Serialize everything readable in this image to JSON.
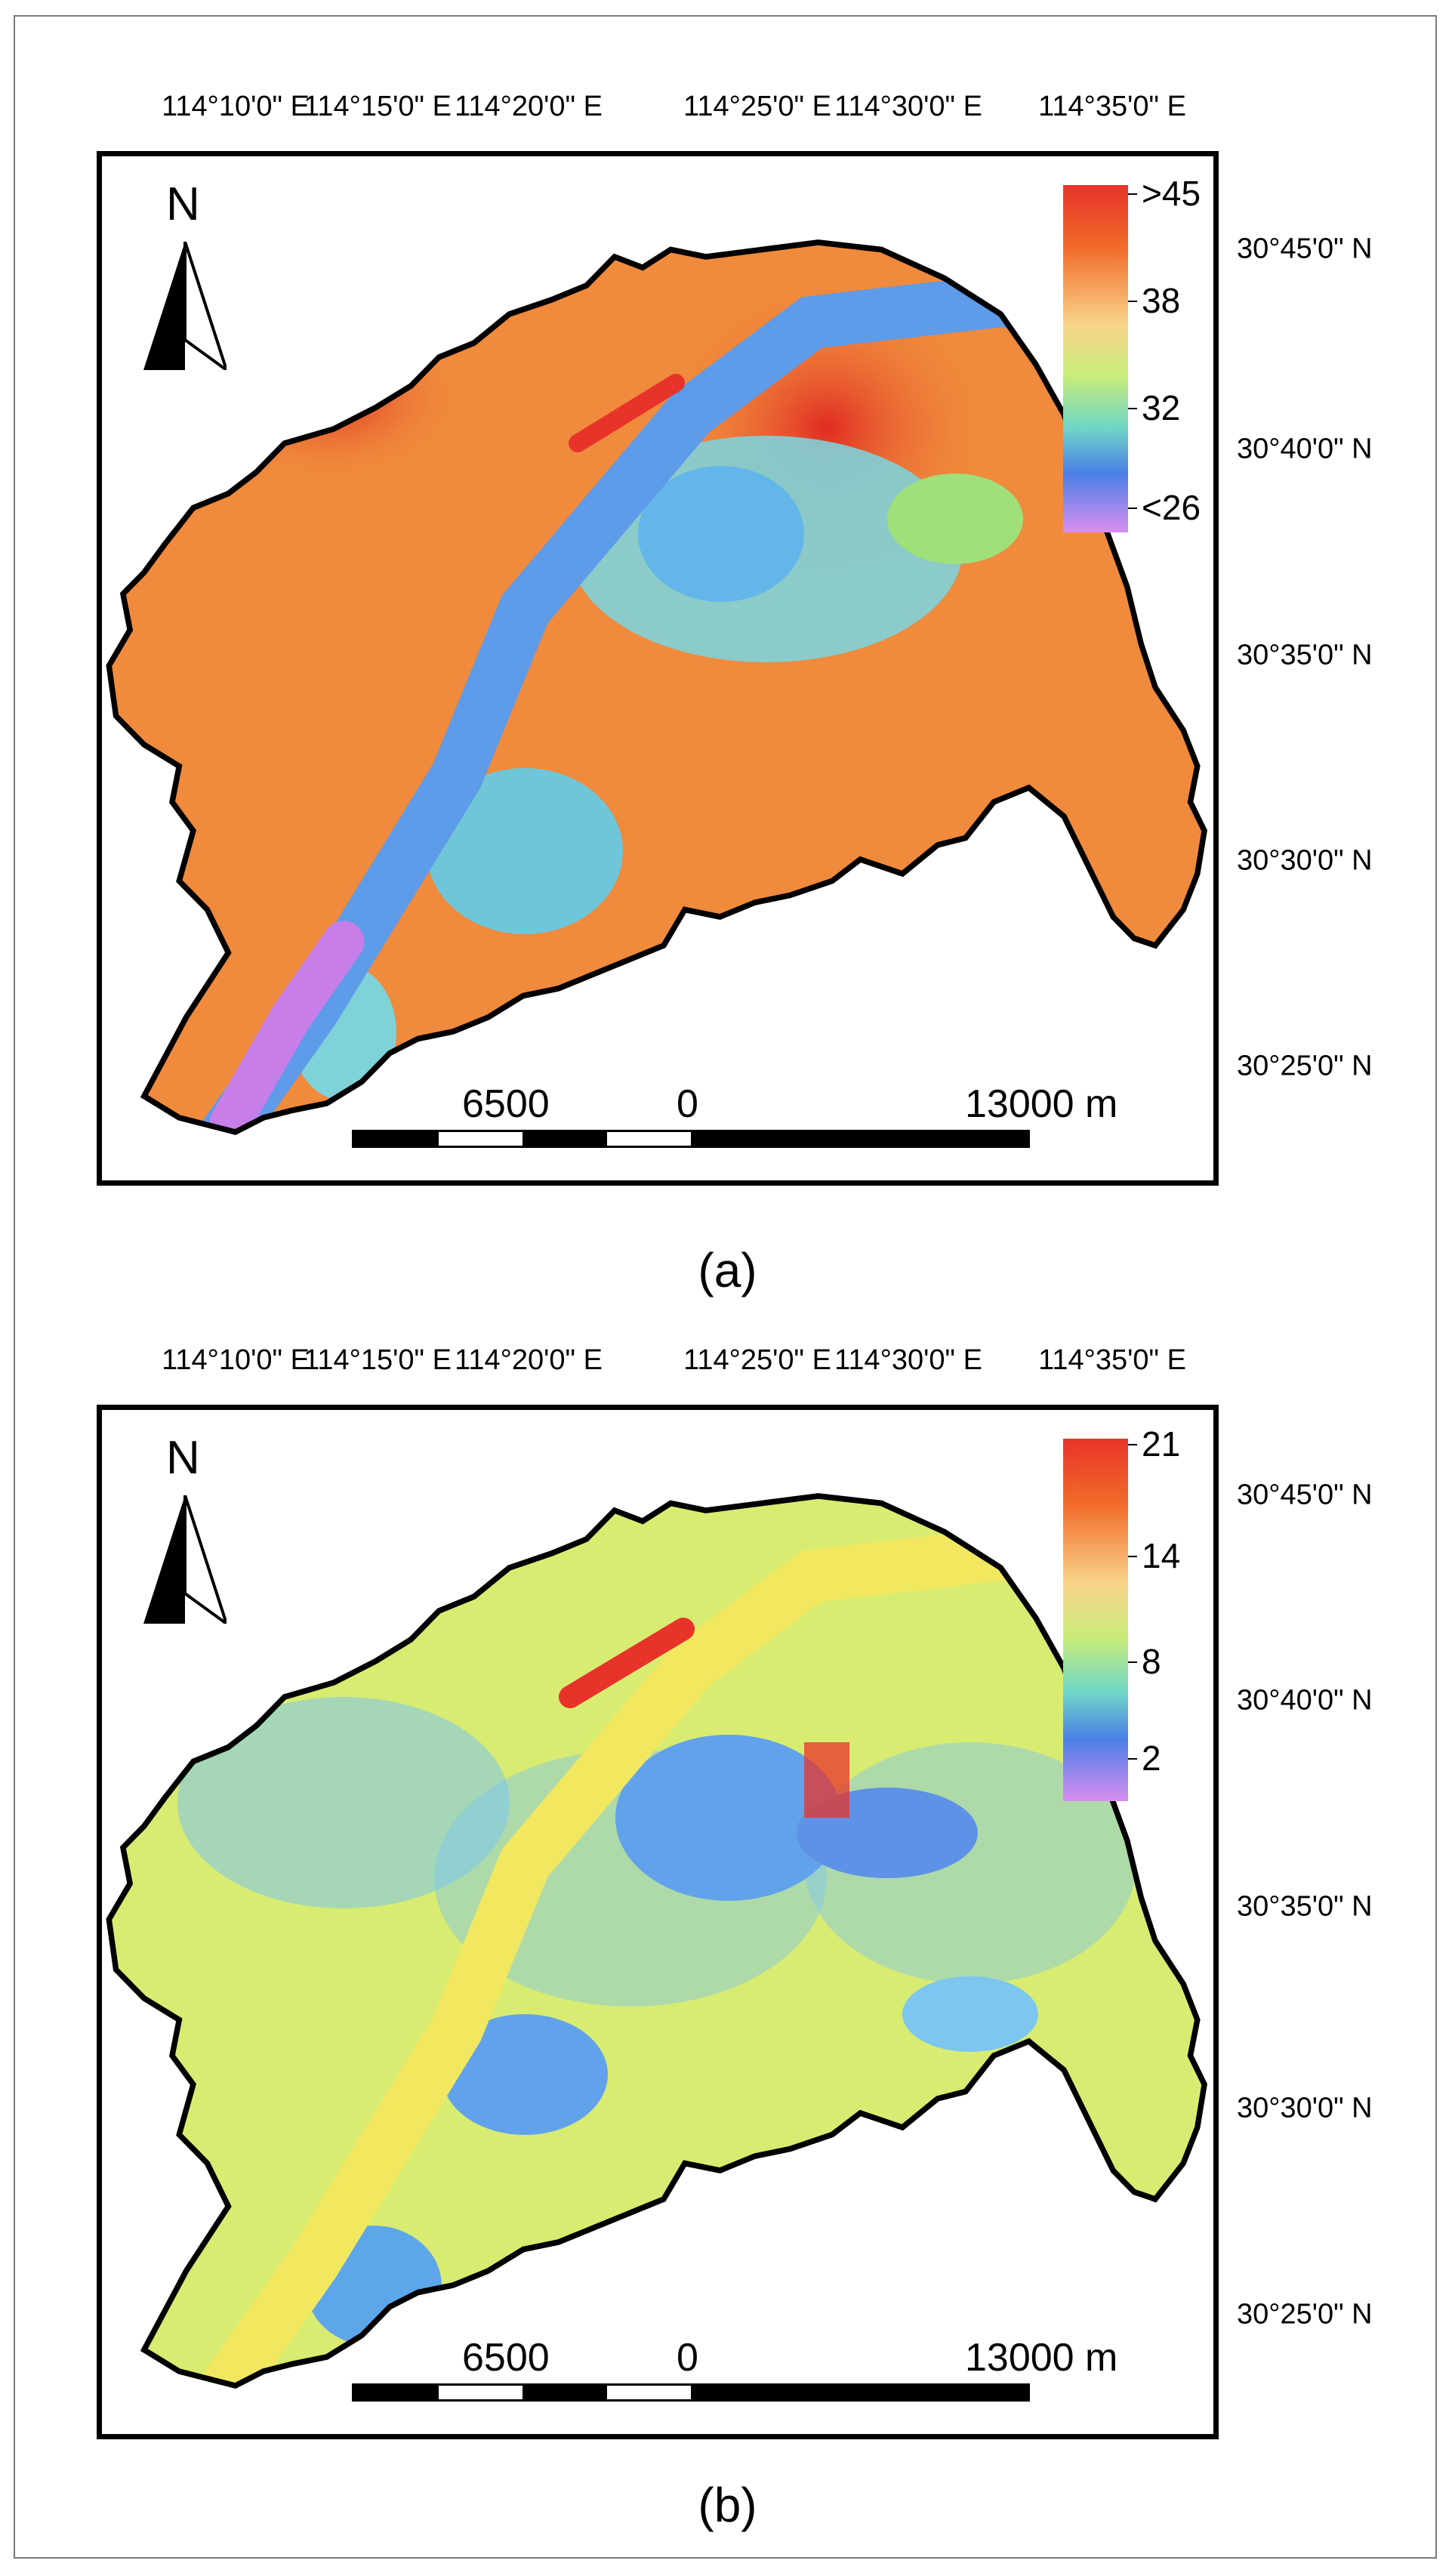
{
  "longitude_labels": [
    "114°10'0\" E",
    "114°15'0\" E",
    "114°20'0\" E",
    "114°25'0\" E",
    "114°30'0\" E",
    "114°35'0\" E"
  ],
  "latitude_labels": [
    "30°45'0\" N",
    "30°40'0\" N",
    "30°35'0\" N",
    "30°30'0\" N",
    "30°25'0\" N"
  ],
  "north_label": "N",
  "scalebar": {
    "left_label": "6500",
    "zero_label": "0",
    "right_label": "13000 m"
  },
  "panels": [
    {
      "caption": "(a)",
      "legend": {
        "labels": [
          ">45",
          "38",
          "32",
          "<26"
        ],
        "values": [
          45,
          38,
          32,
          26
        ]
      },
      "colors": {
        "dominant": "#f08a3c",
        "hot": "#e8332a",
        "water": "#5e9be8",
        "green": "#9fe07a",
        "purple": "#c87ee8"
      }
    },
    {
      "caption": "(b)",
      "legend": {
        "labels": [
          "21",
          "14",
          "8",
          "2"
        ],
        "values": [
          21,
          14,
          8,
          2
        ]
      },
      "colors": {
        "dominant": "#f2e860",
        "hot": "#e8332a",
        "water": "#6aa6ea",
        "green": "#9fe07a",
        "purple": "#c87ee8"
      }
    }
  ],
  "colormap": [
    "#e8332a",
    "#f26b2a",
    "#f5a05a",
    "#f7d48a",
    "#e8f07a",
    "#9fe07a",
    "#6fd6c8",
    "#5eb8ef",
    "#4a7fe6",
    "#b07ae8",
    "#d98ef0"
  ]
}
